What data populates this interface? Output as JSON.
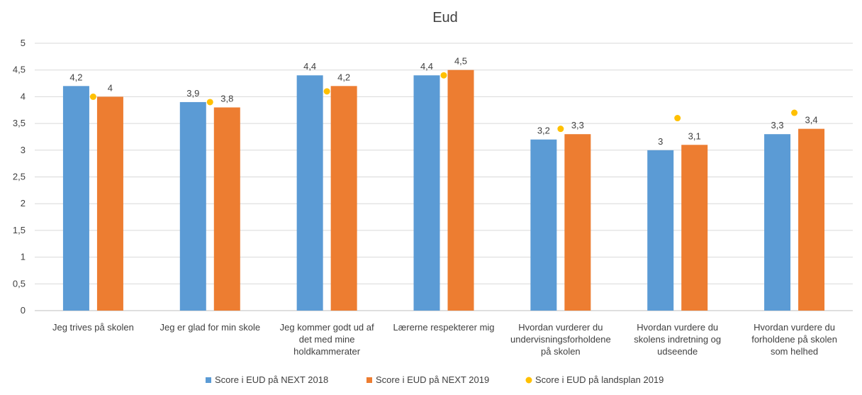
{
  "chart_data": {
    "type": "bar",
    "title": "Eud",
    "xlabel": "",
    "ylabel": "",
    "ylim": [
      0,
      5
    ],
    "yticks": [
      "0",
      "0,5",
      "1",
      "1,5",
      "2",
      "2,5",
      "3",
      "3,5",
      "4",
      "4,5",
      "5"
    ],
    "grid": true,
    "legend_position": "bottom",
    "categories": [
      [
        "Jeg trives på skolen"
      ],
      [
        "Jeg er glad for min skole"
      ],
      [
        "Jeg kommer godt ud af",
        "det med mine",
        "holdkammerater"
      ],
      [
        "Lærerne respekterer mig"
      ],
      [
        "Hvordan vurderer du",
        "undervisningsforholdene",
        "på skolen"
      ],
      [
        "Hvordan vurdere du",
        "skolens indretning og",
        "udseende"
      ],
      [
        "Hvordan vurdere du",
        "forholdene på skolen",
        "som helhed"
      ]
    ],
    "series": [
      {
        "name": "Score i EUD på NEXT 2018",
        "kind": "bar",
        "color": "#5B9BD5",
        "values": [
          4.2,
          3.9,
          4.4,
          4.4,
          3.2,
          3.0,
          3.3
        ],
        "labels": [
          "4,2",
          "3,9",
          "4,4",
          "4,4",
          "3,2",
          "3",
          "3,3"
        ]
      },
      {
        "name": "Score i EUD på NEXT 2019",
        "kind": "bar",
        "color": "#ED7D31",
        "values": [
          4.0,
          3.8,
          4.2,
          4.5,
          3.3,
          3.1,
          3.4
        ],
        "labels": [
          "4",
          "3,8",
          "4,2",
          "4,5",
          "3,3",
          "3,1",
          "3,4"
        ]
      },
      {
        "name": "Score i EUD på landsplan 2019",
        "kind": "dot",
        "color": "#FFC000",
        "values": [
          4.0,
          3.9,
          4.1,
          4.4,
          3.4,
          3.6,
          3.7
        ]
      }
    ]
  }
}
